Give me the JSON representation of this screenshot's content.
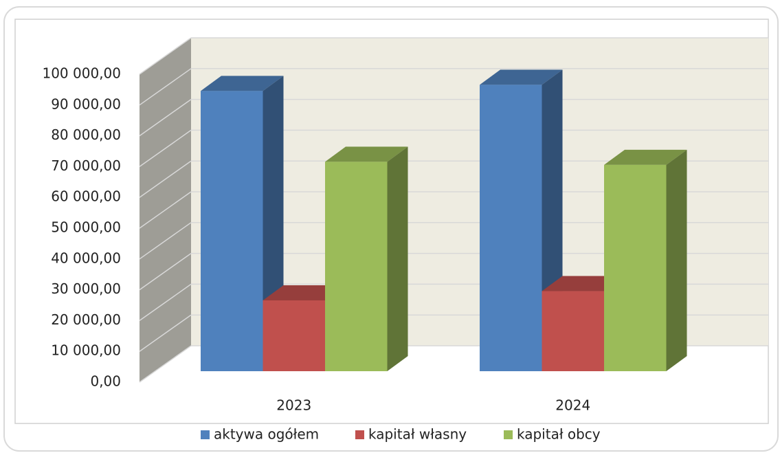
{
  "chart_data": {
    "type": "bar3d",
    "categories": [
      "2023",
      "2024"
    ],
    "series": [
      {
        "name": "aktywa ogółem",
        "color": "#4f81bd",
        "values": [
          91000,
          93000
        ]
      },
      {
        "name": "kapitał własny",
        "color": "#c0504d",
        "values": [
          23000,
          26000
        ]
      },
      {
        "name": "kapitał obcy",
        "color": "#9bbb59",
        "values": [
          68000,
          67000
        ]
      }
    ],
    "ylim": [
      0,
      100000
    ],
    "yticks": [
      {
        "value": 0,
        "label": "0,00"
      },
      {
        "value": 10000,
        "label": "10 000,00"
      },
      {
        "value": 20000,
        "label": "20 000,00"
      },
      {
        "value": 30000,
        "label": "30 000,00"
      },
      {
        "value": 40000,
        "label": "40 000,00"
      },
      {
        "value": 50000,
        "label": "50 000,00"
      },
      {
        "value": 60000,
        "label": "60 000,00"
      },
      {
        "value": 70000,
        "label": "70 000,00"
      },
      {
        "value": 80000,
        "label": "80 000,00"
      },
      {
        "value": 90000,
        "label": "90 000,00"
      },
      {
        "value": 100000,
        "label": "100 000,00"
      }
    ],
    "grid": true,
    "legend": "bottom"
  }
}
